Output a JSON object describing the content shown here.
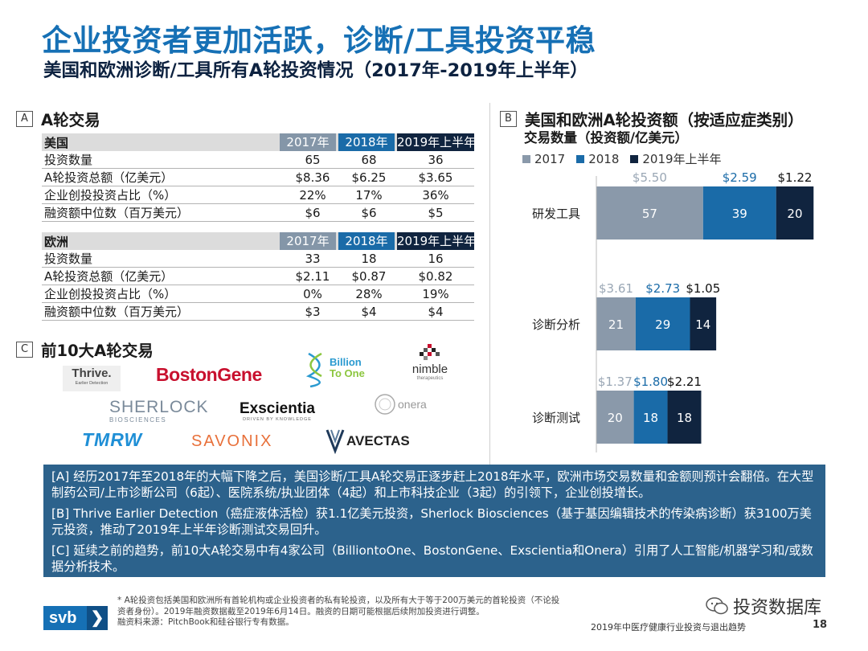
{
  "header": {
    "title": "企业投资者更加活跃，诊断/工具投资平稳",
    "subtitle": "美国和欧洲诊断/工具所有A轮投资情况（2017年-2019年上半年）"
  },
  "section_a": {
    "letter": "A",
    "title": "A轮交易",
    "us": {
      "region": "美国",
      "years": [
        "2017年",
        "2018年",
        "2019年上半年"
      ],
      "rows": [
        {
          "label": "投资数量",
          "v": [
            "65",
            "68",
            "36"
          ]
        },
        {
          "label": "A轮投资总额（亿美元）",
          "v": [
            "$8.36",
            "$6.25",
            "$3.65"
          ]
        },
        {
          "label": "企业创投投资占比（%）",
          "v": [
            "22%",
            "17%",
            "36%"
          ]
        },
        {
          "label": "融资额中位数（百万美元）",
          "v": [
            "$6",
            "$6",
            "$5"
          ]
        }
      ]
    },
    "eu": {
      "region": "欧洲",
      "years": [
        "2017年",
        "2018年",
        "2019年上半年"
      ],
      "rows": [
        {
          "label": "投资数量",
          "v": [
            "33",
            "18",
            "16"
          ]
        },
        {
          "label": "A轮投资总额（亿美元）",
          "v": [
            "$2.11",
            "$0.87",
            "$0.82"
          ]
        },
        {
          "label": "企业创投投资占比（%）",
          "v": [
            "0%",
            "28%",
            "19%"
          ]
        },
        {
          "label": "融资额中位数（百万美元）",
          "v": [
            "$3",
            "$4",
            "$4"
          ]
        }
      ]
    }
  },
  "section_b": {
    "letter": "B",
    "title": "美国和欧洲A轮投资额（按适应症类别）",
    "subtitle": "交易数量（投资额/亿美元）"
  },
  "section_c": {
    "letter": "C",
    "title": "前10大A轮交易",
    "logos": {
      "thrive": "Thrive.",
      "thrive_sub": "Earlier Detection",
      "bostongene": "BostonGene",
      "billion_1": "Billion",
      "billion_2": "To One",
      "nimble": "nimble",
      "nimble_sub": "therapeutics",
      "sherlock": "SHERLOCK",
      "sherlock_sub": "BIOSCIENCES",
      "exscientia": "Exscientia",
      "exscientia_sub": "DRIVEN BY KNOWLEDGE",
      "onera": "onera",
      "tmrw": "TMRW",
      "savonix": "SAVONIX",
      "avectas": "AVECTAS"
    }
  },
  "chart_data": {
    "type": "bar",
    "orientation": "horizontal",
    "stacked": true,
    "categories": [
      "研发工具",
      "诊断分析",
      "诊断测试"
    ],
    "series": [
      {
        "name": "2017",
        "values": [
          57,
          21,
          20
        ],
        "amounts": [
          "$5.50",
          "$3.61",
          "$1.37"
        ],
        "color": "#8a99aa"
      },
      {
        "name": "2018",
        "values": [
          39,
          29,
          18
        ],
        "amounts": [
          "$2.59",
          "$2.73",
          "$1.80"
        ],
        "color": "#1a6ba8"
      },
      {
        "name": "2019年上半年",
        "values": [
          20,
          14,
          18
        ],
        "amounts": [
          "$1.22",
          "$1.05",
          "$2.21"
        ],
        "color": "#10243f"
      }
    ],
    "legend_position": "top"
  },
  "notes": {
    "a": "[A] 经历2017年至2018年的大幅下降之后，美国诊断/工具A轮交易正逐步赶上2018年水平，欧洲市场交易数量和金额则预计会翻倍。在大型制药公司/上市诊断公司（6起）、医院系统/执业团体（4起）和上市科技企业（3起）的引领下，企业创投增长。",
    "b": "[B] Thrive Earlier Detection（癌症液体活检）获1.1亿美元投资，Sherlock Biosciences（基于基因编辑技术的传染病诊断）获3100万美元投资，推动了2019年上半年诊断测试交易回升。",
    "c": "[C] 延续之前的趋势，前10大A轮交易中有4家公司（BilliontoOne、BostonGene、Exscientia和Onera）引用了人工智能/机器学习和/或数据分析技术。"
  },
  "footer": {
    "logo_text": "svb",
    "logo_arrow": "❯",
    "footnote_1": "* A轮投资包括美国和欧洲所有首轮机构或企业投资者的私有轮投资，以及所有大于等于200万美元的首轮投资（不论投资者身份）。2019年融资数据截至2019年6月14日。融资的日期可能根据后续附加投资进行调整。",
    "footnote_2": "融资料来源：PitchBook和硅谷银行专有数据。",
    "report_name": "2019年中医疗健康行业投资与退出趋势",
    "page_number": "18",
    "watermark": "投资数据库"
  }
}
